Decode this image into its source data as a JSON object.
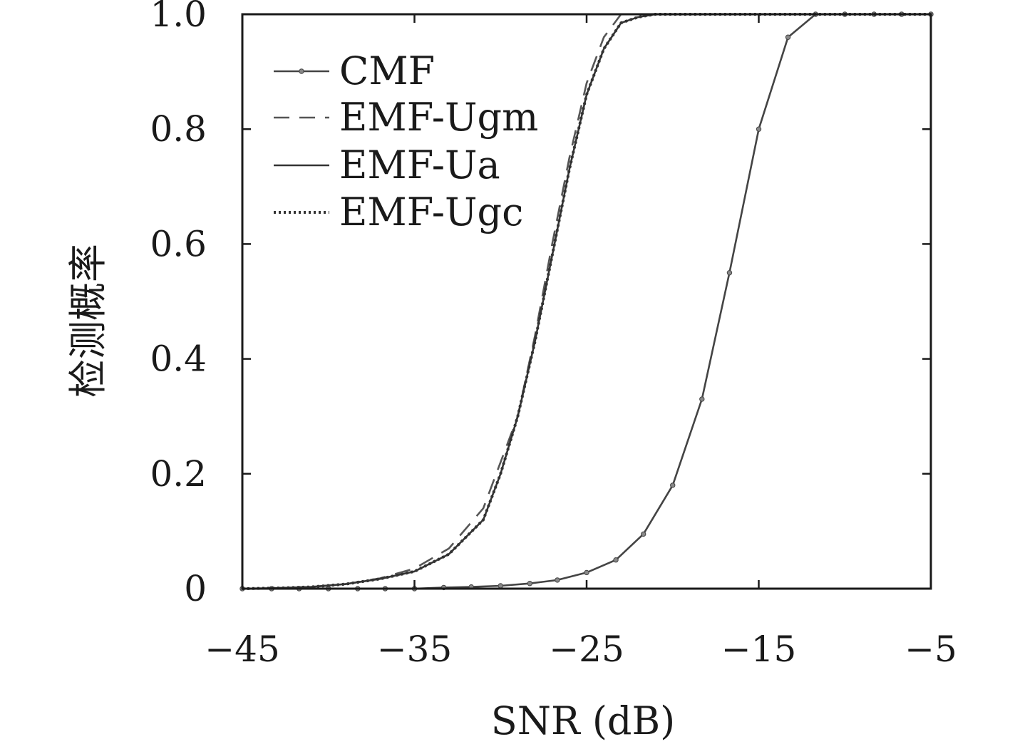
{
  "chart_data": {
    "type": "line",
    "xlabel": "SNR (dB)",
    "ylabel": "检测概率",
    "xlim": [
      -45,
      -5
    ],
    "ylim": [
      0,
      1
    ],
    "x_ticks": [
      -45,
      -35,
      -25,
      -15,
      -5
    ],
    "x_tick_labels": [
      "−45",
      "−35",
      "−25",
      "−15",
      "−5"
    ],
    "y_ticks": [
      0,
      0.2,
      0.4,
      0.6,
      0.8,
      1.0
    ],
    "y_tick_labels": [
      "0",
      "0.2",
      "0.4",
      "0.6",
      "0.8",
      "1.0"
    ],
    "grid": false,
    "legend_position": "top-left",
    "series": [
      {
        "name": "CMF",
        "style": "solid-marker",
        "color": "#444444",
        "x": [
          -45,
          -43.3,
          -41.7,
          -40,
          -38.3,
          -36.7,
          -35,
          -33.3,
          -31.7,
          -30,
          -28.3,
          -26.7,
          -25,
          -23.3,
          -21.7,
          -20,
          -18.3,
          -16.7,
          -15,
          -13.3,
          -11.7,
          -10,
          -8.3,
          -6.7,
          -5
        ],
        "y": [
          0,
          0,
          0,
          0,
          0,
          0,
          0,
          0.002,
          0.003,
          0.005,
          0.009,
          0.015,
          0.028,
          0.05,
          0.095,
          0.18,
          0.33,
          0.55,
          0.8,
          0.96,
          1.0,
          1.0,
          1.0,
          1.0,
          1.0
        ]
      },
      {
        "name": "EMF-Ugm",
        "style": "dashed",
        "color": "#555555",
        "x": [
          -45,
          -43,
          -41,
          -39,
          -37,
          -35,
          -33,
          -31,
          -29,
          -28,
          -27,
          -26,
          -25,
          -24,
          -23,
          -22,
          -5
        ],
        "y": [
          0,
          0.001,
          0.003,
          0.008,
          0.018,
          0.035,
          0.07,
          0.14,
          0.3,
          0.44,
          0.6,
          0.75,
          0.88,
          0.96,
          1.0,
          1.0,
          1.0
        ]
      },
      {
        "name": "EMF-Ua",
        "style": "solid",
        "color": "#333333",
        "x": [
          -45,
          -43,
          -41,
          -39,
          -37,
          -35,
          -33,
          -31,
          -30,
          -29,
          -28,
          -27,
          -26,
          -25,
          -24,
          -23,
          -22,
          -21,
          -5
        ],
        "y": [
          0,
          0.001,
          0.003,
          0.008,
          0.017,
          0.03,
          0.06,
          0.12,
          0.2,
          0.3,
          0.43,
          0.58,
          0.73,
          0.86,
          0.94,
          0.985,
          0.995,
          1.0,
          1.0
        ]
      },
      {
        "name": "EMF-Ugc",
        "style": "dotted",
        "color": "#333333",
        "x": [
          -45,
          -43,
          -41,
          -39,
          -37,
          -35,
          -33,
          -31,
          -30,
          -29,
          -28,
          -27,
          -26,
          -25,
          -24,
          -23,
          -22,
          -21,
          -5
        ],
        "y": [
          0,
          0.001,
          0.003,
          0.008,
          0.017,
          0.03,
          0.06,
          0.12,
          0.2,
          0.3,
          0.43,
          0.58,
          0.73,
          0.86,
          0.94,
          0.985,
          0.995,
          1.0,
          1.0
        ]
      }
    ]
  }
}
